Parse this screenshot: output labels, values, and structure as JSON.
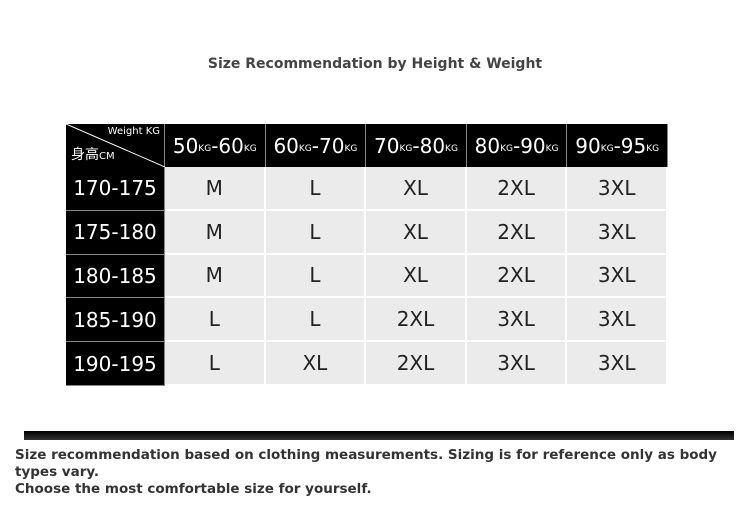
{
  "title": "Size Recommendation by Height & Weight",
  "table": {
    "corner": {
      "top": "Weight KG",
      "bottom": [
        "身高",
        "CM"
      ]
    },
    "columns": [
      [
        "50",
        "KG",
        "-60",
        "KG"
      ],
      [
        "60",
        "KG",
        "-70",
        "KG"
      ],
      [
        "70",
        "KG",
        "-80",
        "KG"
      ],
      [
        "80",
        "KG",
        "-90",
        "KG"
      ],
      [
        "90",
        "KG",
        "-95",
        "KG"
      ]
    ],
    "rows": [
      {
        "label": "170-175",
        "cells": [
          "M",
          "L",
          "XL",
          "2XL",
          "3XL"
        ]
      },
      {
        "label": "175-180",
        "cells": [
          "M",
          "L",
          "XL",
          "2XL",
          "3XL"
        ]
      },
      {
        "label": "180-185",
        "cells": [
          "M",
          "L",
          "XL",
          "2XL",
          "3XL"
        ]
      },
      {
        "label": "185-190",
        "cells": [
          "L",
          "L",
          "2XL",
          "3XL",
          "3XL"
        ]
      },
      {
        "label": "190-195",
        "cells": [
          "L",
          "XL",
          "2XL",
          "3XL",
          "3XL"
        ]
      }
    ]
  },
  "footer": {
    "lines": [
      "Size recommendation based on clothing measurements. Sizing is for reference only as body types vary.",
      "Choose the most comfortable size for yourself."
    ]
  }
}
